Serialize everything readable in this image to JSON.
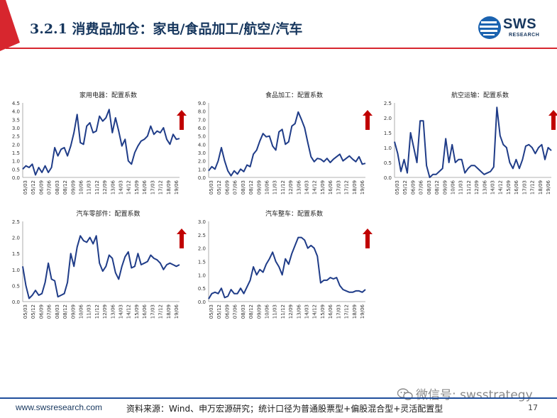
{
  "header": {
    "title": "3.2.1 消费品加仓：家电/食品加工/航空/汽车",
    "logo_text": "SWS",
    "logo_sub": "RESEARCH"
  },
  "colors": {
    "line": "#1f3c88",
    "arrow": "#c00000",
    "header_red": "#d7262e",
    "title_blue": "#17375e",
    "footer_rule": "#1f4e9c"
  },
  "chart_data": [
    {
      "type": "line",
      "title": "家用电器：配置系数",
      "ylim": [
        0,
        4.5
      ],
      "yticks": [
        "0.0",
        "0.5",
        "1.0",
        "1.5",
        "2.0",
        "2.5",
        "3.0",
        "3.5",
        "4.0",
        "4.5"
      ],
      "xticks": [
        "05/03",
        "05/12",
        "06/09",
        "07/06",
        "08/03",
        "08/12",
        "09/09",
        "10/06",
        "11/03",
        "11/12",
        "12/09",
        "13/06",
        "14/03",
        "14/12",
        "15/09",
        "16/06",
        "17/03",
        "17/12",
        "18/09",
        "19/06"
      ],
      "arrow": "up",
      "values": [
        0.5,
        0.7,
        0.6,
        0.8,
        0.15,
        0.6,
        0.3,
        0.7,
        0.3,
        0.6,
        1.8,
        1.3,
        1.7,
        1.8,
        1.3,
        1.9,
        2.7,
        3.8,
        2.1,
        2.0,
        3.1,
        3.3,
        2.7,
        2.8,
        3.7,
        3.4,
        3.6,
        4.1,
        2.7,
        3.6,
        2.8,
        1.9,
        2.3,
        1.0,
        0.8,
        1.5,
        1.9,
        2.2,
        2.3,
        2.5,
        3.1,
        2.6,
        2.8,
        2.7,
        3.0,
        2.3,
        2.0,
        2.6,
        2.3,
        2.35
      ]
    },
    {
      "type": "line",
      "title": "食品加工：配置系数",
      "ylim": [
        0,
        9.0
      ],
      "yticks": [
        "0.0",
        "1.0",
        "2.0",
        "3.0",
        "4.0",
        "5.0",
        "6.0",
        "7.0",
        "8.0",
        "9.0"
      ],
      "xticks": [
        "05/03",
        "05/12",
        "06/09",
        "07/06",
        "08/03",
        "08/12",
        "09/09",
        "10/06",
        "11/03",
        "11/12",
        "12/09",
        "13/06",
        "14/03",
        "14/12",
        "15/09",
        "16/06",
        "17/03",
        "17/12",
        "18/09",
        "19/06"
      ],
      "arrow": "up",
      "values": [
        0.8,
        1.3,
        1.0,
        2.0,
        3.6,
        2.0,
        0.8,
        0.2,
        0.8,
        0.4,
        1.0,
        0.7,
        1.5,
        1.3,
        2.8,
        3.3,
        4.4,
        5.3,
        4.9,
        5.0,
        3.8,
        3.3,
        5.5,
        5.8,
        4.0,
        4.3,
        6.2,
        6.5,
        7.9,
        7.0,
        6.0,
        4.2,
        2.5,
        1.9,
        2.3,
        2.2,
        1.9,
        2.3,
        1.8,
        2.2,
        2.5,
        2.8,
        2.0,
        2.3,
        2.6,
        2.2,
        1.9,
        2.5,
        1.6,
        1.7
      ]
    },
    {
      "type": "line",
      "title": "航空运输：配置系数",
      "ylim": [
        0,
        2.5
      ],
      "yticks": [
        "0.0",
        "0.5",
        "1.0",
        "1.5",
        "2.0",
        "2.5"
      ],
      "xticks": [
        "05/03",
        "05/12",
        "06/09",
        "07/06",
        "08/03",
        "08/12",
        "09/09",
        "10/06",
        "11/03",
        "11/12",
        "12/09",
        "13/06",
        "14/03",
        "14/12",
        "15/09",
        "16/06",
        "17/03",
        "17/12",
        "18/09",
        "19/06"
      ],
      "arrow": "up",
      "values": [
        1.2,
        0.8,
        0.2,
        0.6,
        0.15,
        1.5,
        1.0,
        0.5,
        1.9,
        1.9,
        0.4,
        0.0,
        0.1,
        0.1,
        0.2,
        0.3,
        1.3,
        0.5,
        1.1,
        0.5,
        0.6,
        0.6,
        0.15,
        0.3,
        0.4,
        0.4,
        0.3,
        0.2,
        0.1,
        0.15,
        0.2,
        0.35,
        2.35,
        1.4,
        1.1,
        1.0,
        0.5,
        0.3,
        0.6,
        0.3,
        0.6,
        1.05,
        1.1,
        1.0,
        0.8,
        1.0,
        1.1,
        0.6,
        1.0,
        0.9
      ]
    },
    {
      "type": "line",
      "title": "汽车零部件：配置系数",
      "ylim": [
        0,
        2.5
      ],
      "yticks": [
        "0.0",
        "0.5",
        "1.0",
        "1.5",
        "2.0",
        "2.5"
      ],
      "xticks": [
        "05/03",
        "05/12",
        "06/09",
        "07/06",
        "08/03",
        "08/12",
        "09/09",
        "10/06",
        "11/03",
        "11/12",
        "12/09",
        "13/06",
        "14/03",
        "14/12",
        "15/09",
        "16/06",
        "17/03",
        "17/12",
        "18/09",
        "19/06"
      ],
      "arrow": "up",
      "values": [
        1.1,
        0.5,
        0.1,
        0.2,
        0.35,
        0.2,
        0.25,
        0.6,
        1.2,
        0.7,
        0.65,
        0.15,
        0.2,
        0.25,
        0.6,
        1.5,
        1.1,
        1.7,
        2.05,
        1.9,
        1.85,
        2.0,
        1.8,
        2.05,
        1.2,
        0.95,
        1.1,
        1.45,
        1.35,
        0.9,
        0.7,
        1.1,
        1.4,
        1.55,
        1.05,
        1.1,
        1.5,
        1.15,
        1.2,
        1.25,
        1.45,
        1.35,
        1.3,
        1.2,
        1.0,
        1.15,
        1.2,
        1.15,
        1.1,
        1.15
      ]
    },
    {
      "type": "line",
      "title": "汽车整车：配置系数",
      "ylim": [
        0,
        3.0
      ],
      "yticks": [
        "0.0",
        "0.5",
        "1.0",
        "1.5",
        "2.0",
        "2.5",
        "3.0"
      ],
      "xticks": [
        "05/03",
        "05/12",
        "06/09",
        "07/06",
        "08/03",
        "08/12",
        "09/09",
        "10/06",
        "11/03",
        "11/12",
        "12/09",
        "13/06",
        "14/03",
        "14/12",
        "15/09",
        "16/06",
        "17/03",
        "17/12",
        "18/09",
        "19/06"
      ],
      "arrow": "up",
      "values": [
        0.1,
        0.3,
        0.35,
        0.3,
        0.5,
        0.15,
        0.2,
        0.45,
        0.3,
        0.3,
        0.5,
        0.3,
        0.55,
        0.8,
        1.3,
        1.0,
        1.2,
        1.1,
        1.4,
        1.6,
        1.85,
        1.5,
        1.3,
        1.0,
        1.6,
        1.4,
        1.8,
        2.1,
        2.4,
        2.4,
        2.3,
        2.0,
        2.1,
        2.0,
        1.7,
        0.7,
        0.8,
        0.8,
        0.9,
        0.85,
        0.9,
        0.6,
        0.45,
        0.4,
        0.35,
        0.35,
        0.4,
        0.4,
        0.35,
        0.45
      ]
    }
  ],
  "footer": {
    "url": "www.swsresearch.com",
    "source": "资料来源：Wind、申万宏源研究；统计口径为普通股票型+偏股混合型+灵活配置型",
    "page": "17",
    "wechat": "微信号: swsstrategy"
  }
}
